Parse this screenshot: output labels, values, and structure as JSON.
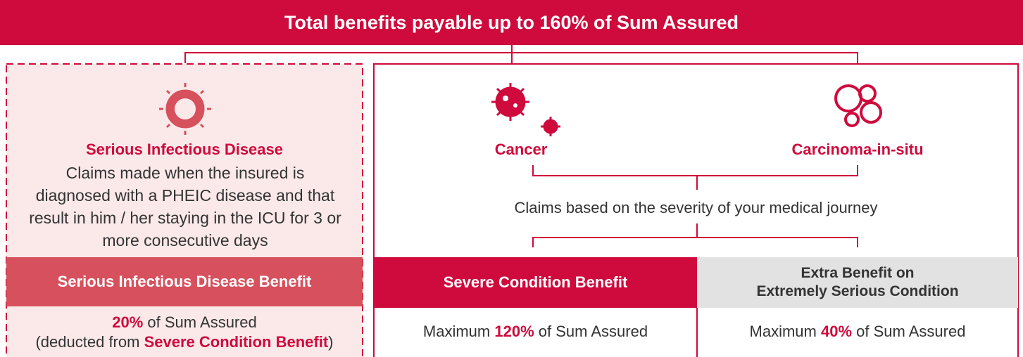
{
  "header": {
    "title": "Total benefits payable up to 160% of Sum Assured"
  },
  "left": {
    "title": "Serious Infectious Disease",
    "description": "Claims made when the insured is diagnosed with a PHEIC disease and that result in him / her staying in the ICU for 3 or more consecutive days",
    "benefit": "Serious Infectious Disease Benefit",
    "amount": {
      "percent": "20%",
      "text": "of Sum Assured",
      "note_open": "(deducted from",
      "note_link": "Severe Condition Benefit",
      "note_close": ")"
    }
  },
  "right": {
    "conditions": [
      "Cancer",
      "Carcinoma-in-situ"
    ],
    "description": "Claims based on the severity of your medical journey",
    "benefits": [
      {
        "title_lines": [
          "Severe Condition Benefit"
        ],
        "prefix": "Maximum",
        "percent": "120%",
        "suffix": "of Sum Assured"
      },
      {
        "title_lines": [
          "Extra Benefit on",
          "Extremely Serious Condition"
        ],
        "prefix": "Maximum",
        "percent": "40%",
        "suffix": "of Sum Assured"
      }
    ]
  }
}
